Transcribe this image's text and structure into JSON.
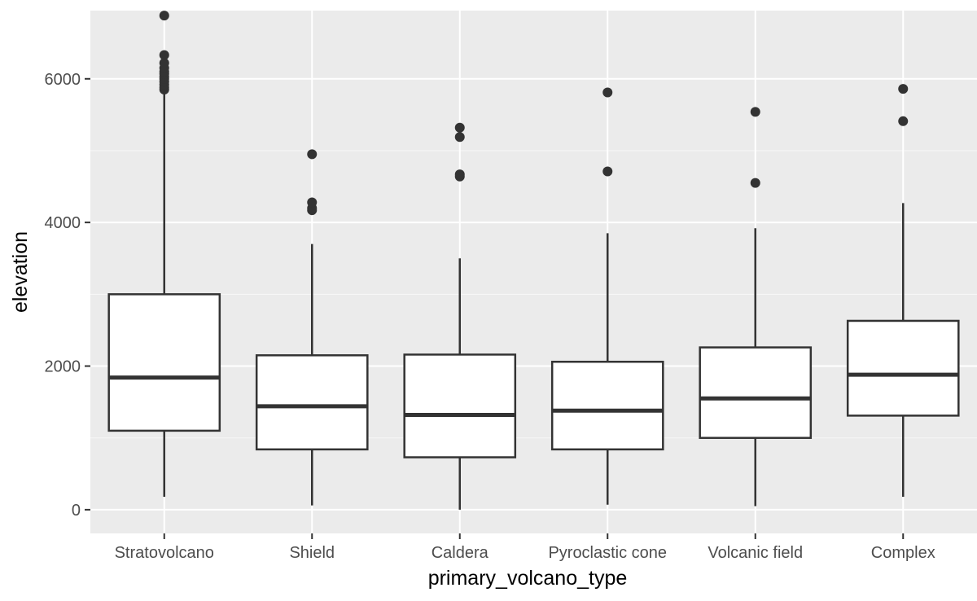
{
  "chart_data": {
    "type": "boxplot",
    "xlabel": "primary_volcano_type",
    "ylabel": "elevation",
    "ylim": [
      -330,
      6950
    ],
    "yticks": [
      0,
      2000,
      4000,
      6000
    ],
    "grid": true,
    "categories": [
      "Stratovolcano",
      "Shield",
      "Caldera",
      "Pyroclastic cone",
      "Volcanic field",
      "Complex"
    ],
    "boxes": [
      {
        "category": "Stratovolcano",
        "whisker_low": 180,
        "q1": 1100,
        "median": 1840,
        "q3": 3000,
        "whisker_high": 5800,
        "outliers": [
          5850,
          5880,
          5920,
          5960,
          6000,
          6030,
          6070,
          6100,
          6150,
          6220,
          6330,
          6880
        ]
      },
      {
        "category": "Shield",
        "whisker_low": 60,
        "q1": 840,
        "median": 1440,
        "q3": 2150,
        "whisker_high": 3700,
        "outliers": [
          4170,
          4200,
          4280,
          4950
        ]
      },
      {
        "category": "Caldera",
        "whisker_low": 0,
        "q1": 730,
        "median": 1320,
        "q3": 2160,
        "whisker_high": 3500,
        "outliers": [
          4640,
          4670,
          5190,
          5320
        ]
      },
      {
        "category": "Pyroclastic cone",
        "whisker_low": 70,
        "q1": 840,
        "median": 1380,
        "q3": 2060,
        "whisker_high": 3850,
        "outliers": [
          4710,
          5810
        ]
      },
      {
        "category": "Volcanic field",
        "whisker_low": 50,
        "q1": 1000,
        "median": 1550,
        "q3": 2260,
        "whisker_high": 3920,
        "outliers": [
          4550,
          5540
        ]
      },
      {
        "category": "Complex",
        "whisker_low": 180,
        "q1": 1310,
        "median": 1880,
        "q3": 2630,
        "whisker_high": 4270,
        "outliers": [
          5410,
          5860
        ]
      }
    ],
    "colors": {
      "panel": "#ebebeb",
      "grid_major": "#ffffff",
      "box_fill": "#ffffff",
      "box_line": "#333333",
      "outlier": "#333333",
      "tick": "#333333"
    }
  }
}
